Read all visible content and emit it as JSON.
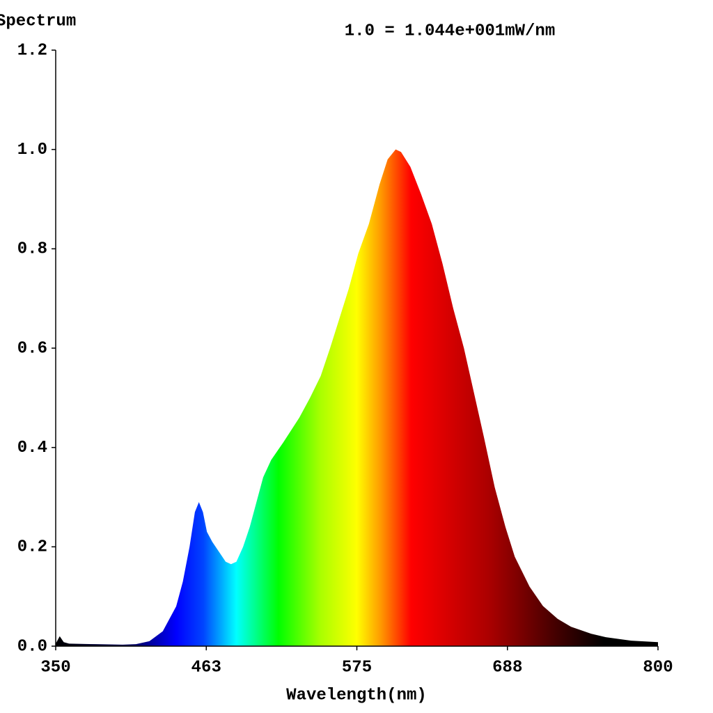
{
  "chart_data": {
    "type": "area",
    "title": "Spectrum",
    "subtitle": "1.0 = 1.044e+001mW/nm",
    "x_label": "Wavelength(nm)",
    "x": [
      350,
      353,
      356,
      360,
      380,
      400,
      410,
      420,
      430,
      440,
      445,
      450,
      454,
      457,
      460,
      463,
      467,
      472,
      477,
      481,
      485,
      490,
      495,
      500,
      505,
      511,
      520,
      532,
      540,
      548,
      555,
      562,
      569,
      576,
      584,
      592,
      598,
      604,
      608,
      615,
      623,
      631,
      639,
      647,
      655,
      662,
      670,
      678,
      686,
      693,
      704,
      714,
      725,
      735,
      750,
      761,
      780,
      800
    ],
    "values": [
      0.005,
      0.02,
      0.008,
      0.005,
      0.004,
      0.003,
      0.004,
      0.01,
      0.03,
      0.08,
      0.13,
      0.2,
      0.27,
      0.29,
      0.27,
      0.23,
      0.21,
      0.19,
      0.17,
      0.165,
      0.17,
      0.2,
      0.24,
      0.29,
      0.34,
      0.375,
      0.41,
      0.46,
      0.5,
      0.544,
      0.6,
      0.66,
      0.72,
      0.79,
      0.85,
      0.93,
      0.98,
      1.0,
      0.995,
      0.965,
      0.91,
      0.85,
      0.77,
      0.68,
      0.6,
      0.516,
      0.42,
      0.32,
      0.24,
      0.18,
      0.12,
      0.081,
      0.055,
      0.039,
      0.025,
      0.018,
      0.011,
      0.008
    ],
    "xlim": [
      350,
      800
    ],
    "xticks": [
      350,
      {
        "value": 462.5,
        "label": "463"
      },
      575,
      {
        "value": 687.5,
        "label": "688"
      },
      800
    ],
    "ylim": [
      0,
      1.2
    ],
    "yticks": [
      {
        "value": 0,
        "label": "0.0"
      },
      0.2,
      0.4,
      0.6,
      0.8,
      {
        "value": 1,
        "label": "1.0"
      },
      1.2
    ],
    "grid": false
  }
}
